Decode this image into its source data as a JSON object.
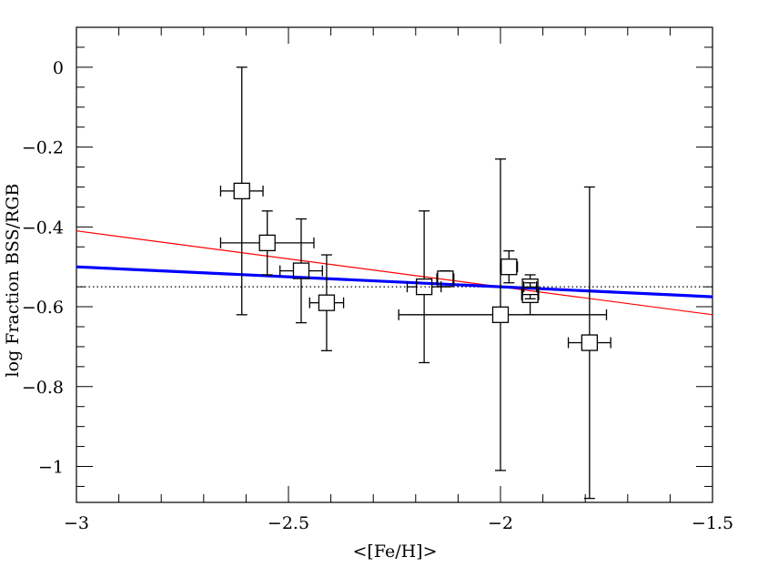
{
  "chart_data": {
    "type": "scatter",
    "xlabel": "<[Fe/H]>",
    "ylabel": "log Fraction BSS/RGB",
    "xlim": [
      -3,
      -1.5
    ],
    "ylim": [
      -1.09,
      0.1
    ],
    "grid": false,
    "x_ticks": [
      -3,
      -2.5,
      -2,
      -1.5
    ],
    "x_tick_labels": [
      "−3",
      "−2.5",
      "−2",
      "−1.5"
    ],
    "y_ticks": [
      0,
      -0.2,
      -0.4,
      -0.6,
      -0.8,
      -1
    ],
    "y_tick_labels": [
      "0",
      "−0.2",
      "−0.4",
      "−0.6",
      "−0.8",
      "−1"
    ],
    "points": [
      {
        "x": -2.61,
        "y": -0.31,
        "xerr": [
          0.05,
          0.05
        ],
        "yerr": [
          0.31,
          0.31
        ]
      },
      {
        "x": -2.55,
        "y": -0.44,
        "xerr": [
          0.11,
          0.11
        ],
        "yerr": [
          0.08,
          0.08
        ]
      },
      {
        "x": -2.47,
        "y": -0.51,
        "xerr": [
          0.05,
          0.05
        ],
        "yerr": [
          0.13,
          0.13
        ]
      },
      {
        "x": -2.41,
        "y": -0.59,
        "xerr": [
          0.04,
          0.04
        ],
        "yerr": [
          0.12,
          0.12
        ]
      },
      {
        "x": -2.18,
        "y": -0.55,
        "xerr": [
          0.04,
          0.04
        ],
        "yerr": [
          0.19,
          0.19
        ]
      },
      {
        "x": -2.13,
        "y": -0.53,
        "xerr": [
          0.02,
          0.02
        ],
        "yerr": [
          0.02,
          0.02
        ]
      },
      {
        "x": -2.0,
        "y": -0.62,
        "xerr": [
          0.24,
          0.25
        ],
        "yerr": [
          0.39,
          0.39
        ]
      },
      {
        "x": -1.98,
        "y": -0.5,
        "xerr": [
          0.02,
          0.02
        ],
        "yerr": [
          0.04,
          0.04
        ]
      },
      {
        "x": -1.93,
        "y": -0.57,
        "xerr": [
          0.02,
          0.02
        ],
        "yerr": [
          0.05,
          0.03
        ]
      },
      {
        "x": -1.93,
        "y": -0.55,
        "xerr": [
          0.015,
          0.015
        ],
        "yerr": [
          0.03,
          0.03
        ]
      },
      {
        "x": -1.79,
        "y": -0.69,
        "xerr": [
          0.05,
          0.05
        ],
        "yerr": [
          0.39,
          0.39
        ]
      }
    ],
    "lines": [
      {
        "style": "dotted",
        "color": "#000000",
        "x": [
          -3,
          -1.5
        ],
        "y": [
          -0.55,
          -0.55
        ]
      },
      {
        "style": "solid-thin",
        "color": "#ff0000",
        "x": [
          -3,
          -1.5
        ],
        "y": [
          -0.41,
          -0.62
        ]
      },
      {
        "style": "solid-thick",
        "color": "#0000ff",
        "x": [
          -3,
          -1.5
        ],
        "y": [
          -0.5,
          -0.575
        ]
      }
    ]
  }
}
